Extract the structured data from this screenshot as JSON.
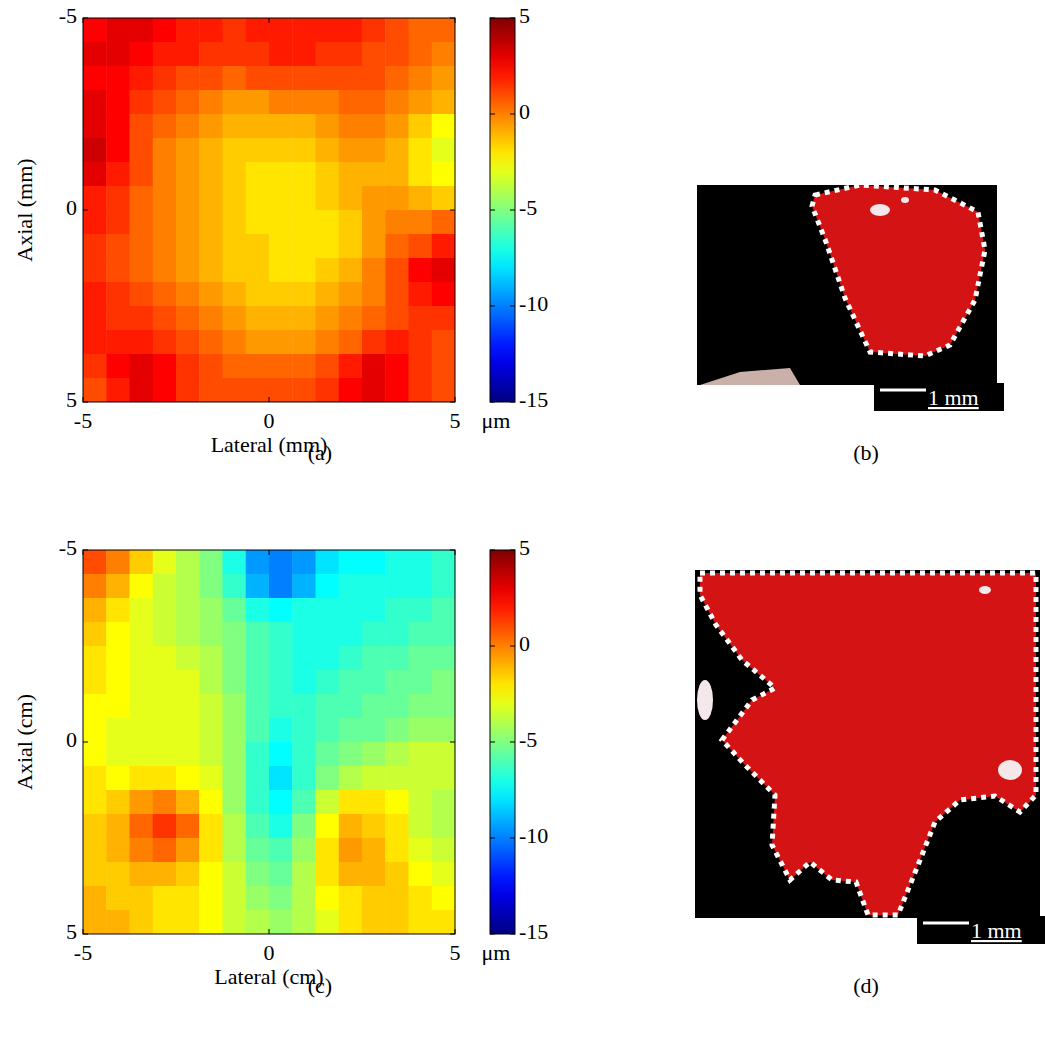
{
  "chart_data": [
    {
      "type": "heatmap",
      "panel_label": "(a)",
      "x_label": "Lateral (mm)",
      "y_label": "Axial (mm)",
      "xlim": [
        -5,
        5
      ],
      "ylim": [
        5,
        -5
      ],
      "xticks": [
        -5,
        0,
        5
      ],
      "yticks": [
        -5,
        0,
        5
      ],
      "grid": false,
      "colorbar": {
        "range": [
          -15,
          5
        ],
        "ticks": [
          -15,
          -10,
          -5,
          0,
          5
        ],
        "label": "μm"
      },
      "cells": [
        [
          2.5,
          3,
          3,
          2.5,
          2,
          2,
          1.5,
          2,
          2,
          2,
          2,
          2,
          1.5,
          1,
          0.5,
          0.5
        ],
        [
          3,
          3,
          2.5,
          2,
          2,
          1.5,
          1.5,
          1.5,
          2,
          2,
          1.5,
          1.5,
          1,
          1,
          0.5,
          0
        ],
        [
          2.5,
          2.5,
          2,
          1.5,
          1,
          1,
          0.5,
          1,
          1,
          1,
          1,
          1,
          1,
          0.5,
          0,
          -0.5
        ],
        [
          3,
          2.5,
          1.5,
          1,
          0.5,
          0,
          -0.5,
          -0.5,
          0,
          0,
          0,
          0.5,
          0.5,
          0,
          -0.5,
          -1
        ],
        [
          3,
          2.5,
          1,
          0.5,
          0,
          -0.5,
          -1,
          -1,
          -1,
          -1,
          -0.5,
          0,
          0,
          -0.5,
          -1.5,
          -2.5
        ],
        [
          3.5,
          2.5,
          1,
          0,
          -0.5,
          -1,
          -1.5,
          -1.5,
          -1.5,
          -1.5,
          -1,
          -0.5,
          -0.5,
          -1,
          -2,
          -3
        ],
        [
          3,
          2,
          1,
          0,
          -0.5,
          -1,
          -1.5,
          -2,
          -2,
          -2,
          -1.5,
          -1,
          -1,
          -1,
          -2,
          -2.5
        ],
        [
          2,
          1.5,
          0.5,
          0,
          -0.5,
          -1,
          -1.5,
          -2,
          -2,
          -2,
          -1.5,
          -1,
          -0.5,
          -0.5,
          -1,
          -1.5
        ],
        [
          2,
          1.5,
          0.5,
          0,
          -0.5,
          -1,
          -1.5,
          -2,
          -2,
          -2,
          -2,
          -1.5,
          -0.5,
          0,
          0,
          0.5
        ],
        [
          1.5,
          1,
          0.5,
          0,
          -0.5,
          -1,
          -1.5,
          -1.5,
          -2,
          -2,
          -2,
          -1.5,
          -0.5,
          0.5,
          1,
          2
        ],
        [
          1.5,
          1,
          0.5,
          0,
          -0.5,
          -1,
          -1.5,
          -1.5,
          -2,
          -2,
          -1.5,
          -1,
          0,
          1,
          2.5,
          3
        ],
        [
          2,
          1.5,
          1,
          0.5,
          0,
          -0.5,
          -1,
          -1.5,
          -1.5,
          -1.5,
          -1,
          -0.5,
          0,
          1,
          2,
          2.5
        ],
        [
          2,
          1.5,
          1.5,
          1,
          0.5,
          0,
          -0.5,
          -1,
          -1,
          -1,
          -0.5,
          0,
          0.5,
          1,
          1.5,
          1.5
        ],
        [
          2,
          2,
          2,
          1.5,
          1,
          0.5,
          0,
          -0.5,
          -0.5,
          -0.5,
          0,
          0.5,
          1.5,
          2,
          1.5,
          1
        ],
        [
          1.5,
          2.5,
          3,
          2.5,
          1.5,
          1,
          0.5,
          0.5,
          0.5,
          0.5,
          1,
          2,
          3,
          2.5,
          1.5,
          1
        ],
        [
          1,
          2,
          3,
          2.5,
          1.5,
          1,
          1,
          1,
          1,
          1,
          1.5,
          2.5,
          3,
          2.5,
          1.5,
          1
        ]
      ]
    },
    {
      "type": "heatmap",
      "panel_label": "(c)",
      "x_label": "Lateral (cm)",
      "y_label": "Axial (cm)",
      "xlim": [
        -5,
        5
      ],
      "ylim": [
        5,
        -5
      ],
      "xticks": [
        -5,
        0,
        5
      ],
      "yticks": [
        -5,
        0,
        5
      ],
      "grid": false,
      "colorbar": {
        "range": [
          -15,
          5
        ],
        "ticks": [
          -15,
          -10,
          -5,
          0,
          5
        ],
        "label": "μm"
      },
      "cells": [
        [
          1,
          0,
          -1.5,
          -3,
          -4,
          -5,
          -7,
          -9.5,
          -10,
          -9.5,
          -8,
          -7.5,
          -7.5,
          -7,
          -7,
          -6.5
        ],
        [
          0,
          -1,
          -2.5,
          -3.5,
          -4,
          -5,
          -6.5,
          -9,
          -10,
          -9,
          -7.5,
          -7,
          -7,
          -7,
          -7,
          -6.5
        ],
        [
          -1,
          -2,
          -3,
          -3.5,
          -4,
          -4.5,
          -5.5,
          -7,
          -7.5,
          -7,
          -7,
          -7,
          -7,
          -6.5,
          -6.5,
          -6
        ],
        [
          -1.5,
          -2.5,
          -3,
          -3.5,
          -4,
          -4.5,
          -5,
          -6,
          -6.5,
          -7,
          -7,
          -7,
          -6.5,
          -6.5,
          -6,
          -6
        ],
        [
          -2,
          -2.5,
          -3,
          -3,
          -3.5,
          -4,
          -5,
          -6,
          -6.5,
          -7,
          -7,
          -6.5,
          -6,
          -6,
          -5.5,
          -5.5
        ],
        [
          -2,
          -2.5,
          -3,
          -3,
          -3,
          -4,
          -5,
          -6,
          -6.5,
          -7,
          -6.5,
          -6,
          -6,
          -5.5,
          -5.5,
          -5
        ],
        [
          -2.5,
          -2.5,
          -3,
          -3,
          -3,
          -3.5,
          -4.5,
          -6,
          -6.5,
          -6.5,
          -6,
          -6,
          -5.5,
          -5.5,
          -5,
          -5
        ],
        [
          -2.5,
          -3,
          -3,
          -3,
          -3,
          -3.5,
          -4.5,
          -6,
          -7,
          -6.5,
          -6,
          -5.5,
          -5.5,
          -5,
          -4.5,
          -4.5
        ],
        [
          -2.5,
          -3,
          -3,
          -3,
          -3,
          -3.5,
          -4.5,
          -6.5,
          -7.5,
          -6.5,
          -5.5,
          -5,
          -4.5,
          -4,
          -3.5,
          -3.5
        ],
        [
          -2,
          -2.5,
          -2,
          -2,
          -2.5,
          -3,
          -4.5,
          -6.5,
          -8,
          -6.5,
          -5,
          -4,
          -3.5,
          -3.5,
          -3.5,
          -3.5
        ],
        [
          -2,
          -1.5,
          -0.5,
          0,
          -1,
          -2.5,
          -4.5,
          -6.5,
          -7.5,
          -6,
          -3.5,
          -2,
          -2,
          -2.5,
          -3.5,
          -4
        ],
        [
          -1.5,
          -1,
          0.5,
          1.5,
          0.5,
          -2,
          -4,
          -6,
          -7,
          -5,
          -2.5,
          -1,
          -1.5,
          -2,
          -3.5,
          -4
        ],
        [
          -1.5,
          -1,
          0,
          0.5,
          -0.5,
          -2,
          -4,
          -5.5,
          -6,
          -4.5,
          -2,
          -0.5,
          -1,
          -2,
          -3,
          -3.5
        ],
        [
          -1.5,
          -1.5,
          -1,
          -1,
          -1.5,
          -2.5,
          -3.5,
          -5,
          -5.5,
          -4,
          -2,
          -1,
          -1,
          -1.5,
          -2.5,
          -3
        ],
        [
          -1,
          -1.5,
          -1.5,
          -2,
          -2,
          -2.5,
          -3.5,
          -4.5,
          -5,
          -4,
          -2.5,
          -2,
          -1.5,
          -1.5,
          -2,
          -2.5
        ],
        [
          -1,
          -1,
          -1.5,
          -2,
          -2,
          -2.5,
          -3.5,
          -4,
          -4.5,
          -4,
          -3,
          -2,
          -1.5,
          -1.5,
          -2,
          -2
        ]
      ]
    }
  ],
  "photos": [
    {
      "panel_label": "(b)",
      "scale_bar_label": "1 mm"
    },
    {
      "panel_label": "(d)",
      "scale_bar_label": "1 mm"
    }
  ]
}
